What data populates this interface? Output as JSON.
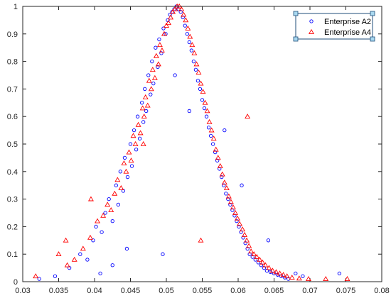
{
  "chart_data": {
    "type": "scatter",
    "xlim": [
      0.03,
      0.08
    ],
    "ylim": [
      0,
      1
    ],
    "xticks": [
      0.03,
      0.035,
      0.04,
      0.045,
      0.05,
      0.055,
      0.06,
      0.065,
      0.07,
      0.075,
      0.08
    ],
    "xtick_labels": [
      "0.03",
      "0.035",
      "0.04",
      "0.045",
      "0.05",
      "0.055",
      "0.06",
      "0.065",
      "0.07",
      "0.075",
      "0.08"
    ],
    "yticks": [
      0,
      0.1,
      0.2,
      0.3,
      0.4,
      0.5,
      0.6,
      0.7,
      0.8,
      0.9,
      1
    ],
    "ytick_labels": [
      "0",
      "0.1",
      "0.2",
      "0.3",
      "0.4",
      "0.5",
      "0.6",
      "0.7",
      "0.8",
      "0.9",
      "1"
    ],
    "grid": false,
    "legend_position": "top-right",
    "series": [
      {
        "name": "Enterprise A2",
        "marker": "circle",
        "color": "#0000ff",
        "x": [
          0.0323,
          0.0345,
          0.0365,
          0.038,
          0.039,
          0.0398,
          0.0402,
          0.041,
          0.0415,
          0.042,
          0.0425,
          0.043,
          0.0433,
          0.0436,
          0.044,
          0.0442,
          0.0446,
          0.045,
          0.0452,
          0.0455,
          0.0458,
          0.046,
          0.0463,
          0.0466,
          0.0468,
          0.047,
          0.0472,
          0.0475,
          0.0478,
          0.048,
          0.0482,
          0.0485,
          0.0488,
          0.049,
          0.0493,
          0.0496,
          0.0499,
          0.0502,
          0.0505,
          0.0508,
          0.0511,
          0.0514,
          0.0517,
          0.052,
          0.0523,
          0.0526,
          0.0529,
          0.0532,
          0.0535,
          0.0538,
          0.0541,
          0.0544,
          0.0547,
          0.055,
          0.0553,
          0.0556,
          0.0559,
          0.0562,
          0.0565,
          0.0568,
          0.0571,
          0.0574,
          0.0577,
          0.058,
          0.0583,
          0.0586,
          0.0589,
          0.0592,
          0.0595,
          0.0598,
          0.0601,
          0.0604,
          0.0607,
          0.061,
          0.0613,
          0.0616,
          0.062,
          0.0624,
          0.0628,
          0.0632,
          0.0636,
          0.064,
          0.0645,
          0.065,
          0.0655,
          0.066,
          0.0665,
          0.067,
          0.068,
          0.069,
          0.0741,
          0.0495,
          0.0445,
          0.0425,
          0.0408,
          0.0512,
          0.0532,
          0.0581,
          0.0605,
          0.0642
        ],
        "y": [
          0.01,
          0.02,
          0.05,
          0.1,
          0.08,
          0.15,
          0.2,
          0.18,
          0.25,
          0.3,
          0.22,
          0.35,
          0.28,
          0.4,
          0.33,
          0.45,
          0.38,
          0.5,
          0.42,
          0.55,
          0.48,
          0.6,
          0.52,
          0.65,
          0.58,
          0.7,
          0.62,
          0.75,
          0.68,
          0.8,
          0.72,
          0.85,
          0.78,
          0.88,
          0.83,
          0.92,
          0.9,
          0.95,
          0.97,
          0.98,
          0.99,
          1.0,
          0.99,
          0.98,
          0.96,
          0.93,
          0.9,
          0.87,
          0.84,
          0.8,
          0.77,
          0.73,
          0.7,
          0.66,
          0.63,
          0.6,
          0.56,
          0.53,
          0.5,
          0.47,
          0.44,
          0.41,
          0.38,
          0.35,
          0.32,
          0.3,
          0.28,
          0.26,
          0.24,
          0.22,
          0.2,
          0.18,
          0.16,
          0.14,
          0.12,
          0.1,
          0.09,
          0.08,
          0.07,
          0.06,
          0.05,
          0.04,
          0.035,
          0.03,
          0.025,
          0.02,
          0.015,
          0.01,
          0.03,
          0.02,
          0.03,
          0.1,
          0.12,
          0.06,
          0.03,
          0.75,
          0.62,
          0.55,
          0.35,
          0.15
        ]
      },
      {
        "name": "Enterprise A4",
        "marker": "triangle",
        "color": "#ff0000",
        "x": [
          0.0318,
          0.035,
          0.0362,
          0.0372,
          0.0384,
          0.0394,
          0.0404,
          0.0412,
          0.0418,
          0.0423,
          0.0428,
          0.0432,
          0.0437,
          0.0441,
          0.0444,
          0.0448,
          0.0451,
          0.0454,
          0.0457,
          0.0461,
          0.0464,
          0.0467,
          0.0469,
          0.0471,
          0.0474,
          0.0476,
          0.0479,
          0.0481,
          0.0484,
          0.0486,
          0.0489,
          0.0491,
          0.0494,
          0.0497,
          0.05,
          0.0503,
          0.0506,
          0.0509,
          0.0512,
          0.0515,
          0.0518,
          0.0521,
          0.0524,
          0.0527,
          0.053,
          0.0533,
          0.0536,
          0.0539,
          0.0542,
          0.0545,
          0.0548,
          0.0551,
          0.0554,
          0.0557,
          0.056,
          0.0563,
          0.0566,
          0.0569,
          0.0572,
          0.0575,
          0.0578,
          0.0581,
          0.0584,
          0.0587,
          0.059,
          0.0593,
          0.0596,
          0.0599,
          0.0602,
          0.0606,
          0.0609,
          0.0612,
          0.0615,
          0.0618,
          0.0622,
          0.0626,
          0.063,
          0.0634,
          0.0638,
          0.0643,
          0.0648,
          0.0653,
          0.0658,
          0.0663,
          0.0668,
          0.0675,
          0.0685,
          0.0698,
          0.0722,
          0.0752,
          0.036,
          0.0395,
          0.0613,
          0.0548,
          0.0468
        ],
        "y": [
          0.02,
          0.1,
          0.06,
          0.08,
          0.12,
          0.16,
          0.22,
          0.24,
          0.28,
          0.26,
          0.32,
          0.37,
          0.34,
          0.43,
          0.4,
          0.47,
          0.44,
          0.53,
          0.5,
          0.57,
          0.54,
          0.63,
          0.6,
          0.67,
          0.64,
          0.73,
          0.7,
          0.77,
          0.74,
          0.82,
          0.79,
          0.86,
          0.84,
          0.9,
          0.93,
          0.94,
          0.96,
          0.98,
          0.99,
          1.0,
          1.0,
          0.99,
          0.97,
          0.95,
          0.92,
          0.89,
          0.86,
          0.83,
          0.79,
          0.76,
          0.72,
          0.69,
          0.65,
          0.62,
          0.58,
          0.55,
          0.52,
          0.48,
          0.45,
          0.42,
          0.39,
          0.36,
          0.34,
          0.31,
          0.29,
          0.27,
          0.25,
          0.23,
          0.21,
          0.19,
          0.17,
          0.15,
          0.13,
          0.11,
          0.1,
          0.09,
          0.08,
          0.07,
          0.06,
          0.05,
          0.04,
          0.035,
          0.03,
          0.025,
          0.02,
          0.015,
          0.012,
          0.01,
          0.01,
          0.01,
          0.15,
          0.3,
          0.6,
          0.15,
          0.5
        ]
      }
    ]
  },
  "legend": {
    "items": [
      "Enterprise A2",
      "Enterprise A4"
    ]
  }
}
